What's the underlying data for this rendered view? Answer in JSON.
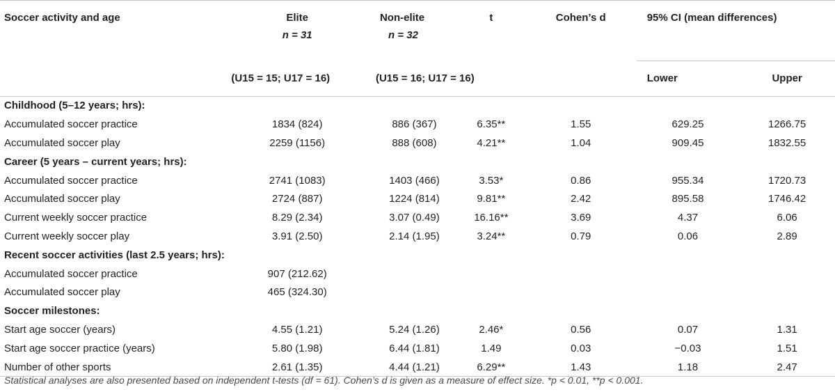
{
  "header": {
    "col_activity": "Soccer activity and age",
    "elite_label": "Elite",
    "elite_n": "n = 31",
    "elite_sub": "(U15 = 15; U17 = 16)",
    "nonelite_label": "Non-elite",
    "nonelite_n": "n = 32",
    "nonelite_sub": "(U15 = 16; U17 = 16)",
    "t": "t",
    "cohens_d": "Cohen’s d",
    "ci": "95% CI (mean differences)",
    "lower": "Lower",
    "upper": "Upper"
  },
  "sections": [
    {
      "title": "Childhood (5–12 years; hrs):",
      "rows": [
        {
          "label": "Accumulated soccer practice",
          "elite": "1834 (824)",
          "nonelite": "886 (367)",
          "t": "6.35**",
          "d": "1.55",
          "lower": "629.25",
          "upper": "1266.75"
        },
        {
          "label": "Accumulated soccer play",
          "elite": "2259 (1156)",
          "nonelite": "888 (608)",
          "t": "4.21**",
          "d": "1.04",
          "lower": "909.45",
          "upper": "1832.55"
        }
      ]
    },
    {
      "title": "Career (5 years – current years; hrs):",
      "rows": [
        {
          "label": "Accumulated soccer practice",
          "elite": "2741 (1083)",
          "nonelite": "1403 (466)",
          "t": "3.53*",
          "d": "0.86",
          "lower": "955.34",
          "upper": "1720.73"
        },
        {
          "label": "Accumulated soccer play",
          "elite": "2724 (887)",
          "nonelite": "1224 (814)",
          "t": "9.81**",
          "d": "2.42",
          "lower": "895.58",
          "upper": "1746.42"
        },
        {
          "label": "Current weekly soccer practice",
          "elite": "8.29 (2.34)",
          "nonelite": "3.07 (0.49)",
          "t": "16.16**",
          "d": "3.69",
          "lower": "4.37",
          "upper": "6.06"
        },
        {
          "label": "Current weekly soccer play",
          "elite": "3.91 (2.50)",
          "nonelite": "2.14 (1.95)",
          "t": "3.24**",
          "d": "0.79",
          "lower": "0.06",
          "upper": "2.89"
        }
      ]
    },
    {
      "title": "Recent soccer activities (last 2.5 years; hrs):",
      "rows": [
        {
          "label": "Accumulated soccer practice",
          "elite": "907 (212.62)",
          "nonelite": "",
          "t": "",
          "d": "",
          "lower": "",
          "upper": ""
        },
        {
          "label": "Accumulated soccer play",
          "elite": "465 (324.30)",
          "nonelite": "",
          "t": "",
          "d": "",
          "lower": "",
          "upper": ""
        }
      ]
    },
    {
      "title": "Soccer milestones:",
      "rows": [
        {
          "label": "Start age soccer (years)",
          "elite": "4.55 (1.21)",
          "nonelite": "5.24 (1.26)",
          "t": "2.46*",
          "d": "0.56",
          "lower": "0.07",
          "upper": "1.31"
        },
        {
          "label": "Start age soccer practice (years)",
          "elite": "5.80 (1.98)",
          "nonelite": "6.44 (1.81)",
          "t": "1.49",
          "d": "0.03",
          "lower": "−0.03",
          "upper": "1.51"
        },
        {
          "label": "Number of other sports",
          "elite": "2.61 (1.35)",
          "nonelite": "4.44 (1.21)",
          "t": "6.29**",
          "d": "1.43",
          "lower": "1.18",
          "upper": "2.47"
        }
      ]
    }
  ],
  "footnote": "Statistical analyses are also presented based on independent t-tests (df = 61). Cohen’s d is given as a measure of effect size. *p < 0.01, **p < 0.001."
}
